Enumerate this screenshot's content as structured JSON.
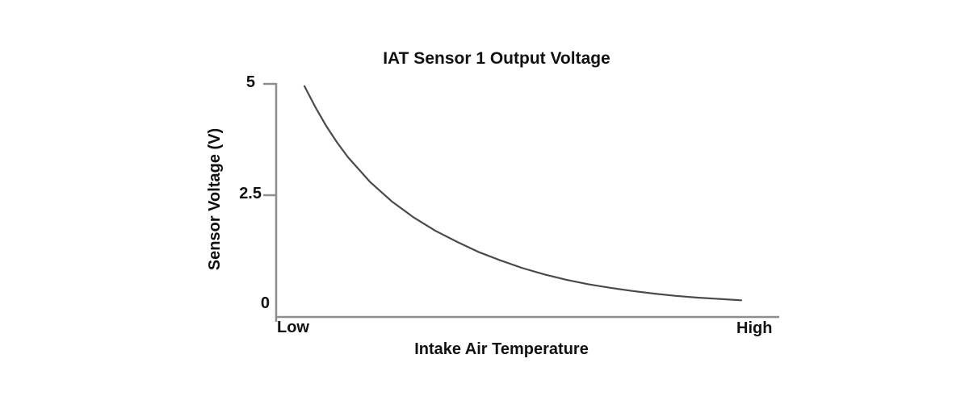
{
  "chart_data": {
    "type": "line",
    "title": "IAT Sensor 1 Output Voltage",
    "xlabel": "Intake Air Temperature",
    "ylabel": "Sensor Voltage (V)",
    "x_tick_labels": [
      "Low",
      "High"
    ],
    "y_tick_labels": [
      "5",
      "2.5",
      "0"
    ],
    "y_ticks": [
      5,
      2.5,
      0
    ],
    "ylim": [
      0,
      5
    ],
    "xlim_normalized": [
      0,
      1
    ],
    "grid": false,
    "legend": false,
    "axis_color": "#8e8e8e",
    "text_color": "#111111",
    "series": [
      {
        "name": "IAT Sensor 1 Output Voltage",
        "color": "#4a4a4a",
        "points": [
          [
            0.0,
            4.95
          ],
          [
            0.025,
            4.48
          ],
          [
            0.05,
            4.05
          ],
          [
            0.075,
            3.68
          ],
          [
            0.1,
            3.35
          ],
          [
            0.15,
            2.8
          ],
          [
            0.2,
            2.36
          ],
          [
            0.25,
            2.0
          ],
          [
            0.3,
            1.7
          ],
          [
            0.35,
            1.45
          ],
          [
            0.4,
            1.22
          ],
          [
            0.45,
            1.03
          ],
          [
            0.5,
            0.86
          ],
          [
            0.55,
            0.72
          ],
          [
            0.6,
            0.6
          ],
          [
            0.65,
            0.5
          ],
          [
            0.7,
            0.42
          ],
          [
            0.75,
            0.35
          ],
          [
            0.8,
            0.29
          ],
          [
            0.85,
            0.24
          ],
          [
            0.9,
            0.2
          ],
          [
            0.95,
            0.17
          ],
          [
            1.0,
            0.14
          ]
        ]
      }
    ]
  }
}
